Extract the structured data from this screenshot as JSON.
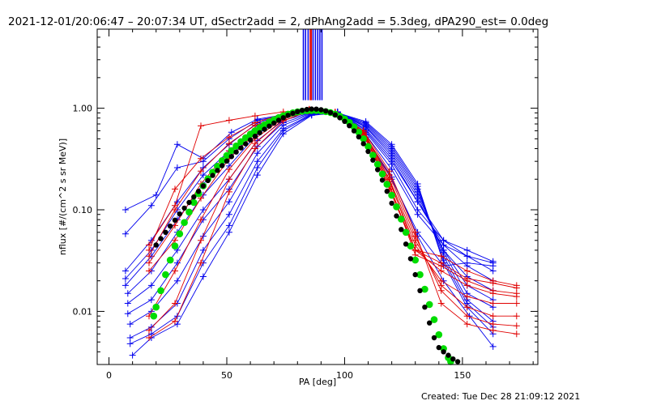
{
  "chart_data": {
    "type": "line",
    "title": "2021-12-01/20:06:47 – 20:07:34 UT, dSectr2add = 2, dPhAng2add = 5.3deg, dPA290_est=  0.0deg",
    "xlabel": "PA [deg]",
    "ylabel": "nflux [#/(cm^2 s sr MeV)]",
    "footer": "Created: Tue Dec 28 21:09:12 2021",
    "xlim": [
      -5,
      182
    ],
    "ylim": [
      0.003,
      6.0
    ],
    "yscale": "log",
    "grid": false,
    "xticks": [
      0,
      50,
      100,
      150
    ],
    "xtick_labels": [
      "0",
      "50",
      "100",
      "150"
    ],
    "yticks": [
      0.01,
      0.1,
      1.0
    ],
    "ytick_labels": [
      "0.01",
      "0.10",
      "1.00"
    ],
    "colors": {
      "blue": "#0000ee",
      "red": "#e00000",
      "green": "#00dd00",
      "black": "#000000"
    },
    "vertical_lines": {
      "y_range": [
        1.2,
        6.0
      ],
      "series": [
        {
          "color": "#0000ee",
          "x": [
            82.5,
            83.4,
            84.5,
            86.6,
            87.6,
            88.6,
            89.5,
            90.4
          ]
        },
        {
          "color": "#e00000",
          "x": [
            85.4,
            85.9
          ]
        }
      ]
    },
    "green_fit": {
      "x": [
        19,
        20,
        22,
        24,
        26,
        28,
        30,
        32,
        34,
        36,
        38,
        40,
        42,
        44,
        46,
        48,
        50,
        52,
        54,
        56,
        58,
        60,
        62,
        64,
        66,
        68,
        70,
        72,
        74,
        76,
        78,
        80,
        82,
        84,
        86,
        88,
        90,
        92,
        94,
        96,
        98,
        100,
        102,
        104,
        106,
        108,
        110,
        112,
        114,
        116,
        118,
        120,
        122,
        124,
        126,
        128,
        130,
        132,
        134,
        136,
        138,
        140,
        142,
        144,
        145
      ],
      "y": [
        0.009,
        0.011,
        0.016,
        0.023,
        0.032,
        0.044,
        0.058,
        0.075,
        0.095,
        0.118,
        0.144,
        0.172,
        0.202,
        0.234,
        0.268,
        0.305,
        0.343,
        0.383,
        0.425,
        0.468,
        0.512,
        0.556,
        0.6,
        0.644,
        0.688,
        0.73,
        0.77,
        0.808,
        0.843,
        0.874,
        0.9,
        0.92,
        0.935,
        0.945,
        0.95,
        0.948,
        0.94,
        0.925,
        0.905,
        0.875,
        0.835,
        0.785,
        0.725,
        0.655,
        0.58,
        0.5,
        0.42,
        0.345,
        0.28,
        0.225,
        0.178,
        0.139,
        0.107,
        0.081,
        0.06,
        0.044,
        0.032,
        0.023,
        0.0165,
        0.0117,
        0.0083,
        0.0059,
        0.0043,
        0.0035,
        0.0032
      ]
    },
    "black_fit": {
      "x": [
        20,
        22,
        24,
        26,
        28,
        30,
        32,
        34,
        36,
        38,
        40,
        42,
        44,
        46,
        48,
        50,
        52,
        54,
        56,
        58,
        60,
        62,
        64,
        66,
        68,
        70,
        72,
        74,
        76,
        78,
        80,
        82,
        84,
        86,
        88,
        90,
        92,
        94,
        96,
        98,
        100,
        102,
        104,
        106,
        108,
        110,
        112,
        114,
        116,
        118,
        120,
        122,
        124,
        126,
        128,
        130,
        132,
        134,
        136,
        138,
        140,
        142,
        144,
        146,
        148
      ],
      "y": [
        0.045,
        0.052,
        0.06,
        0.069,
        0.079,
        0.091,
        0.104,
        0.118,
        0.134,
        0.152,
        0.172,
        0.194,
        0.218,
        0.244,
        0.272,
        0.302,
        0.335,
        0.37,
        0.407,
        0.446,
        0.487,
        0.53,
        0.574,
        0.62,
        0.666,
        0.713,
        0.76,
        0.806,
        0.85,
        0.89,
        0.925,
        0.953,
        0.972,
        0.982,
        0.98,
        0.965,
        0.94,
        0.905,
        0.86,
        0.805,
        0.742,
        0.672,
        0.598,
        0.522,
        0.447,
        0.375,
        0.308,
        0.248,
        0.196,
        0.152,
        0.116,
        0.087,
        0.064,
        0.046,
        0.033,
        0.023,
        0.016,
        0.011,
        0.0077,
        0.0055,
        0.0044,
        0.004,
        0.0037,
        0.0034,
        0.0032
      ]
    },
    "series": [
      {
        "color": "#0000ee",
        "x": [
          7,
          20,
          29,
          40,
          52,
          63,
          74,
          86,
          97,
          109,
          120,
          131,
          142,
          153,
          163
        ],
        "y": [
          0.1,
          0.14,
          0.44,
          0.32,
          0.58,
          0.78,
          0.86,
          0.92,
          0.9,
          0.52,
          0.21,
          0.055,
          0.02,
          0.009,
          0.0045
        ]
      },
      {
        "color": "#0000ee",
        "x": [
          7,
          18,
          29,
          40,
          51,
          63,
          74,
          86,
          97,
          109,
          120,
          131,
          142,
          152,
          163
        ],
        "y": [
          0.058,
          0.11,
          0.26,
          0.3,
          0.5,
          0.76,
          0.85,
          0.92,
          0.91,
          0.5,
          0.2,
          0.06,
          0.028,
          0.03,
          0.028
        ]
      },
      {
        "color": "#0000ee",
        "x": [
          7,
          18,
          29,
          40,
          51,
          63,
          74,
          86,
          97,
          109,
          120,
          131,
          142,
          152,
          163
        ],
        "y": [
          0.025,
          0.05,
          0.12,
          0.26,
          0.44,
          0.72,
          0.86,
          0.93,
          0.92,
          0.55,
          0.25,
          0.09,
          0.045,
          0.035,
          0.03
        ]
      },
      {
        "color": "#0000ee",
        "x": [
          7,
          18,
          29,
          40,
          51,
          63,
          74,
          86,
          97,
          109,
          120,
          131,
          142,
          152,
          163
        ],
        "y": [
          0.021,
          0.04,
          0.1,
          0.22,
          0.38,
          0.68,
          0.85,
          0.93,
          0.91,
          0.58,
          0.28,
          0.1,
          0.05,
          0.04,
          0.031
        ]
      },
      {
        "color": "#0000ee",
        "x": [
          7,
          18,
          29,
          40,
          51,
          63,
          74,
          86,
          97,
          109,
          120,
          131,
          142,
          152,
          163
        ],
        "y": [
          0.018,
          0.035,
          0.08,
          0.18,
          0.32,
          0.62,
          0.83,
          0.92,
          0.92,
          0.6,
          0.3,
          0.12,
          0.05,
          0.035,
          0.025
        ]
      },
      {
        "color": "#0000ee",
        "x": [
          8,
          18,
          29,
          40,
          51,
          63,
          74,
          86,
          97,
          109,
          120,
          131,
          142,
          152,
          163
        ],
        "y": [
          0.015,
          0.025,
          0.06,
          0.14,
          0.27,
          0.56,
          0.8,
          0.91,
          0.92,
          0.62,
          0.32,
          0.12,
          0.045,
          0.028,
          0.02
        ]
      },
      {
        "color": "#0000ee",
        "x": [
          8,
          18,
          29,
          40,
          51,
          63,
          74,
          86,
          97,
          109,
          120,
          131,
          142,
          152,
          163
        ],
        "y": [
          0.012,
          0.018,
          0.04,
          0.1,
          0.2,
          0.48,
          0.76,
          0.9,
          0.91,
          0.65,
          0.34,
          0.13,
          0.04,
          0.022,
          0.016
        ]
      },
      {
        "color": "#0000ee",
        "x": [
          8,
          18,
          29,
          40,
          51,
          63,
          74,
          86,
          97,
          109,
          120,
          131,
          142,
          152,
          163
        ],
        "y": [
          0.0095,
          0.013,
          0.03,
          0.08,
          0.16,
          0.42,
          0.72,
          0.89,
          0.91,
          0.66,
          0.36,
          0.14,
          0.04,
          0.018,
          0.013
        ]
      },
      {
        "color": "#0000ee",
        "x": [
          9,
          18,
          29,
          40,
          51,
          63,
          74,
          86,
          97,
          109,
          120,
          131,
          142,
          152,
          163
        ],
        "y": [
          0.0075,
          0.01,
          0.02,
          0.055,
          0.12,
          0.36,
          0.68,
          0.88,
          0.9,
          0.68,
          0.38,
          0.15,
          0.038,
          0.015,
          0.011
        ]
      },
      {
        "color": "#0000ee",
        "x": [
          9,
          18,
          29,
          40,
          51,
          63,
          74,
          86,
          97,
          109,
          120,
          131,
          142,
          152,
          163
        ],
        "y": [
          0.0055,
          0.007,
          0.012,
          0.04,
          0.09,
          0.3,
          0.63,
          0.87,
          0.9,
          0.7,
          0.4,
          0.16,
          0.035,
          0.013,
          0.008
        ]
      },
      {
        "color": "#0000ee",
        "x": [
          9,
          18,
          29,
          40,
          51,
          63,
          74,
          86,
          97,
          109,
          120,
          131,
          142,
          152,
          163
        ],
        "y": [
          0.0048,
          0.006,
          0.009,
          0.03,
          0.07,
          0.26,
          0.6,
          0.86,
          0.9,
          0.72,
          0.42,
          0.17,
          0.032,
          0.012,
          0.007
        ]
      },
      {
        "color": "#0000ee",
        "x": [
          10,
          18,
          29,
          40,
          51,
          63,
          74,
          86,
          97,
          109,
          120,
          131,
          142,
          152,
          163
        ],
        "y": [
          0.0037,
          0.0055,
          0.0075,
          0.022,
          0.06,
          0.22,
          0.56,
          0.85,
          0.9,
          0.74,
          0.44,
          0.18,
          0.03,
          0.011,
          0.006
        ]
      },
      {
        "color": "#e00000",
        "x": [
          17,
          28,
          39,
          51,
          62,
          74,
          85,
          96,
          108,
          119,
          130,
          141,
          152,
          163,
          173
        ],
        "y": [
          0.045,
          0.11,
          0.67,
          0.76,
          0.84,
          0.92,
          0.97,
          0.9,
          0.58,
          0.16,
          0.04,
          0.03,
          0.021,
          0.019,
          0.017
        ]
      },
      {
        "color": "#e00000",
        "x": [
          17,
          28,
          39,
          51,
          62,
          74,
          85,
          96,
          108,
          119,
          130,
          141,
          152,
          163,
          173
        ],
        "y": [
          0.04,
          0.16,
          0.32,
          0.52,
          0.72,
          0.88,
          0.98,
          0.92,
          0.6,
          0.2,
          0.04,
          0.035,
          0.025,
          0.02,
          0.018
        ]
      },
      {
        "color": "#e00000",
        "x": [
          17,
          28,
          39,
          51,
          62,
          74,
          85,
          96,
          108,
          119,
          130,
          141,
          152,
          163,
          173
        ],
        "y": [
          0.035,
          0.1,
          0.24,
          0.45,
          0.68,
          0.86,
          0.97,
          0.91,
          0.56,
          0.18,
          0.036,
          0.028,
          0.02,
          0.016,
          0.015
        ]
      },
      {
        "color": "#e00000",
        "x": [
          17,
          28,
          39,
          51,
          62,
          74,
          85,
          96,
          108,
          119,
          130,
          141,
          152,
          163,
          173
        ],
        "y": [
          0.03,
          0.07,
          0.18,
          0.38,
          0.62,
          0.84,
          0.96,
          0.9,
          0.54,
          0.17,
          0.04,
          0.025,
          0.018,
          0.015,
          0.014
        ]
      },
      {
        "color": "#e00000",
        "x": [
          17,
          28,
          39,
          51,
          62,
          74,
          85,
          96,
          108,
          119,
          130,
          141,
          152,
          163,
          173
        ],
        "y": [
          0.025,
          0.05,
          0.13,
          0.32,
          0.56,
          0.82,
          0.96,
          0.9,
          0.55,
          0.19,
          0.045,
          0.02,
          0.014,
          0.012,
          0.012
        ]
      },
      {
        "color": "#e00000",
        "x": [
          17,
          28,
          39,
          51,
          62,
          74,
          85,
          96,
          108,
          119,
          130,
          141,
          152,
          163,
          173
        ],
        "y": [
          0.009,
          0.025,
          0.08,
          0.25,
          0.5,
          0.8,
          0.95,
          0.9,
          0.57,
          0.2,
          0.05,
          0.018,
          0.011,
          0.009,
          0.009
        ]
      },
      {
        "color": "#e00000",
        "x": [
          17,
          28,
          39,
          51,
          62,
          74,
          85,
          96,
          108,
          119,
          130,
          141,
          152,
          163,
          173
        ],
        "y": [
          0.0065,
          0.012,
          0.05,
          0.2,
          0.45,
          0.78,
          0.95,
          0.89,
          0.58,
          0.22,
          0.055,
          0.016,
          0.009,
          0.0075,
          0.0072
        ]
      },
      {
        "color": "#e00000",
        "x": [
          17,
          28,
          39,
          51,
          62,
          74,
          85,
          96,
          108,
          119,
          130,
          141,
          152,
          163,
          173
        ],
        "y": [
          0.0055,
          0.008,
          0.03,
          0.15,
          0.4,
          0.75,
          0.94,
          0.88,
          0.6,
          0.24,
          0.06,
          0.012,
          0.0075,
          0.0065,
          0.006
        ]
      }
    ]
  }
}
